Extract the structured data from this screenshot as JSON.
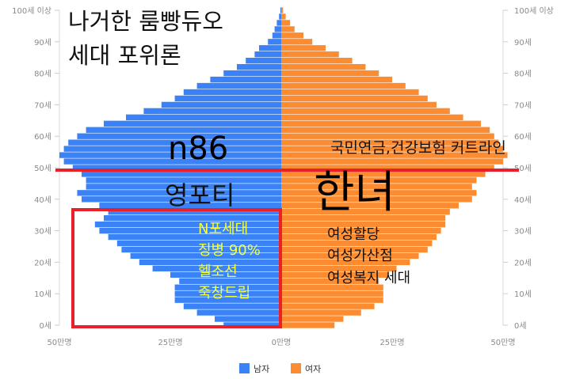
{
  "chart_data": {
    "type": "bar",
    "orientation": "horizontal-population-pyramid",
    "age_axis": {
      "min": 0,
      "max": 100,
      "ticks": [
        0,
        10,
        20,
        30,
        40,
        50,
        60,
        70,
        80,
        90,
        100
      ],
      "tick_labels": [
        "0세",
        "10세",
        "20세",
        "30세",
        "40세",
        "50세",
        "60세",
        "70세",
        "80세",
        "90세",
        "100세 이상"
      ]
    },
    "value_axis": {
      "unit": "만명",
      "range": [
        -50,
        50
      ],
      "tick_labels": [
        "50만명",
        "25만명",
        "0만명",
        "25만명",
        "50만명"
      ]
    },
    "legend_position": "bottom-center",
    "series": [
      {
        "name": "남자",
        "color": "#3b82f6",
        "side": "left",
        "ages": [
          0,
          2,
          4,
          6,
          8,
          10,
          12,
          14,
          16,
          18,
          20,
          22,
          24,
          26,
          28,
          30,
          32,
          34,
          36,
          38,
          40,
          42,
          44,
          46,
          48,
          50,
          52,
          54,
          56,
          58,
          60,
          62,
          64,
          66,
          68,
          70,
          72,
          74,
          76,
          78,
          80,
          82,
          84,
          86,
          88,
          90,
          92,
          94,
          96,
          98,
          100
        ],
        "values": [
          13,
          15,
          19,
          22,
          24,
          24,
          24,
          23,
          25,
          29,
          32,
          34,
          36,
          37,
          39,
          41,
          42,
          40,
          39,
          41,
          45,
          46,
          44,
          44,
          45,
          47,
          49,
          50,
          49,
          48,
          46,
          44,
          40,
          35,
          31,
          27,
          24,
          22,
          19,
          16,
          13,
          10,
          8,
          6,
          5,
          3,
          2,
          1.5,
          1,
          0.5,
          0.2
        ]
      },
      {
        "name": "여자",
        "color": "#fb8c32",
        "side": "right",
        "ages": [
          0,
          2,
          4,
          6,
          8,
          10,
          12,
          14,
          16,
          18,
          20,
          22,
          24,
          26,
          28,
          30,
          32,
          34,
          36,
          38,
          40,
          42,
          44,
          46,
          48,
          50,
          52,
          54,
          56,
          58,
          60,
          62,
          64,
          66,
          68,
          70,
          72,
          74,
          76,
          78,
          80,
          82,
          84,
          86,
          88,
          90,
          92,
          94,
          96,
          98,
          100
        ],
        "values": [
          12,
          14,
          18,
          21,
          23,
          23,
          23,
          22,
          24,
          26,
          29,
          31,
          33,
          34,
          35,
          36,
          37,
          37,
          38,
          40,
          43,
          44,
          43,
          44,
          46,
          48,
          50,
          51,
          50,
          49,
          48,
          47,
          45,
          41,
          38,
          35,
          33,
          31,
          28,
          25,
          22,
          19,
          16,
          13,
          10,
          7,
          5,
          3,
          2,
          1,
          0.4
        ]
      }
    ]
  },
  "legend": [
    {
      "label": "남자",
      "color": "#3b82f6"
    },
    {
      "label": "여자",
      "color": "#fb8c32"
    }
  ],
  "overlay": {
    "title_line1": "나거한 룸빵듀오",
    "title_line2": "세대 포위론",
    "n86": "n86",
    "pension": "국민연금,건강보험 커트라인",
    "young": "영포티",
    "women": "한녀",
    "n_generation": [
      "N포세대",
      "징병 90%",
      "헬조선",
      "죽창드립"
    ],
    "women_list": [
      "여성할당",
      "여성가산점",
      "여성복지 세대"
    ],
    "line_color": "#e8202a",
    "box_color": "#e8202a",
    "yellow_text_color": "#f5ff3a"
  }
}
